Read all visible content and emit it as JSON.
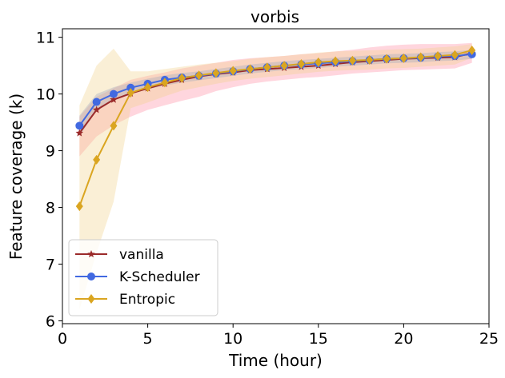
{
  "chart_data": {
    "type": "line",
    "title": "vorbis",
    "xlabel": "Time (hour)",
    "ylabel": "Feature coverage (k)",
    "xlim": [
      0,
      25
    ],
    "ylim": [
      5.95,
      11.15
    ],
    "xticks": [
      0,
      5,
      10,
      15,
      20,
      25
    ],
    "yticks": [
      6,
      7,
      8,
      9,
      10,
      11
    ],
    "grid": false,
    "legend_position": "bottom-left",
    "x": [
      1,
      2,
      3,
      4,
      5,
      6,
      7,
      8,
      9,
      10,
      11,
      12,
      13,
      14,
      15,
      16,
      17,
      18,
      19,
      20,
      21,
      22,
      23,
      24
    ],
    "series": [
      {
        "name": "vanilla",
        "color": "#9b2a2a",
        "band_color": "#ff8aa0",
        "marker": "star",
        "values": [
          9.31,
          9.72,
          9.9,
          10.01,
          10.1,
          10.18,
          10.25,
          10.31,
          10.35,
          10.38,
          10.42,
          10.44,
          10.46,
          10.48,
          10.5,
          10.53,
          10.56,
          10.58,
          10.6,
          10.62,
          10.63,
          10.64,
          10.65,
          10.72
        ],
        "upper": [
          9.6,
          9.95,
          10.1,
          10.25,
          10.32,
          10.38,
          10.45,
          10.5,
          10.55,
          10.6,
          10.63,
          10.65,
          10.67,
          10.7,
          10.72,
          10.75,
          10.78,
          10.82,
          10.85,
          10.87,
          10.88,
          10.88,
          10.88,
          10.9
        ],
        "lower": [
          8.9,
          9.25,
          9.45,
          9.6,
          9.72,
          9.8,
          9.88,
          9.95,
          10.05,
          10.12,
          10.18,
          10.22,
          10.25,
          10.28,
          10.3,
          10.33,
          10.36,
          10.38,
          10.4,
          10.42,
          10.43,
          10.44,
          10.45,
          10.55
        ]
      },
      {
        "name": "K-Scheduler",
        "color": "#4169e1",
        "band_color": "#6d8fd8",
        "marker": "circle",
        "values": [
          9.44,
          9.86,
          10.0,
          10.11,
          10.18,
          10.25,
          10.29,
          10.32,
          10.36,
          10.4,
          10.44,
          10.47,
          10.5,
          10.52,
          10.54,
          10.56,
          10.58,
          10.6,
          10.62,
          10.63,
          10.64,
          10.66,
          10.67,
          10.7
        ],
        "upper": [
          9.62,
          10.0,
          10.12,
          10.2,
          10.27,
          10.33,
          10.37,
          10.4,
          10.44,
          10.48,
          10.52,
          10.55,
          10.58,
          10.6,
          10.62,
          10.64,
          10.66,
          10.68,
          10.7,
          10.71,
          10.72,
          10.74,
          10.75,
          10.78
        ],
        "lower": [
          9.26,
          9.7,
          9.88,
          10.0,
          10.08,
          10.15,
          10.2,
          10.24,
          10.28,
          10.32,
          10.36,
          10.39,
          10.42,
          10.44,
          10.46,
          10.48,
          10.5,
          10.52,
          10.54,
          10.55,
          10.56,
          10.58,
          10.59,
          10.62
        ]
      },
      {
        "name": "Entropic",
        "color": "#daa520",
        "band_color": "#f2d28a",
        "marker": "diamond",
        "values": [
          8.02,
          8.84,
          9.44,
          10.02,
          10.12,
          10.2,
          10.28,
          10.33,
          10.37,
          10.41,
          10.44,
          10.47,
          10.5,
          10.53,
          10.56,
          10.58,
          10.59,
          10.6,
          10.62,
          10.63,
          10.65,
          10.67,
          10.69,
          10.77
        ],
        "upper": [
          9.8,
          10.5,
          10.8,
          10.4,
          10.4,
          10.44,
          10.48,
          10.52,
          10.55,
          10.58,
          10.62,
          10.65,
          10.67,
          10.7,
          10.73,
          10.75,
          10.76,
          10.77,
          10.78,
          10.79,
          10.8,
          10.82,
          10.84,
          10.88
        ],
        "lower": [
          6.2,
          7.2,
          8.1,
          9.75,
          9.85,
          9.96,
          10.06,
          10.12,
          10.18,
          10.23,
          10.27,
          10.3,
          10.33,
          10.36,
          10.39,
          10.41,
          10.42,
          10.43,
          10.45,
          10.46,
          10.48,
          10.5,
          10.52,
          10.64
        ]
      }
    ]
  }
}
